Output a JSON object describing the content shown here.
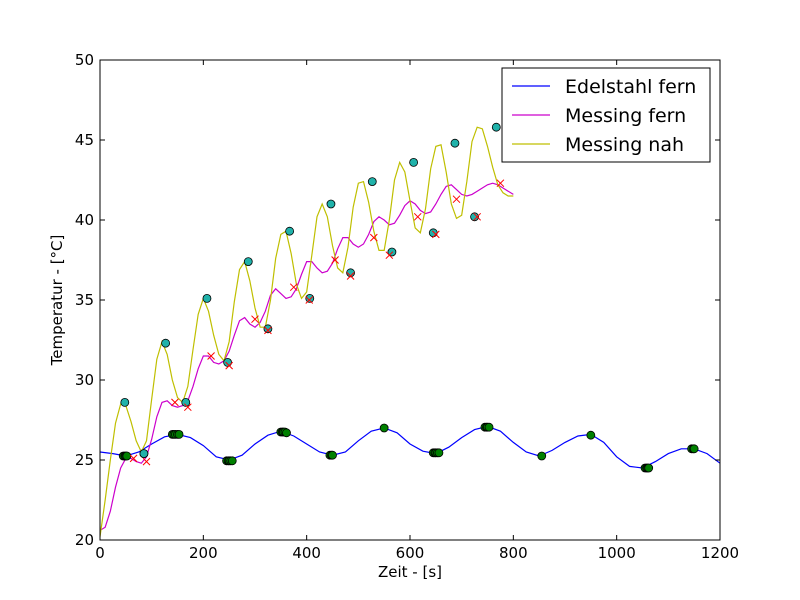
{
  "chart_data": {
    "type": "line",
    "xlabel": "Zeit - [s]",
    "ylabel": "Temperatur - [°C]",
    "xlim": [
      0,
      1200
    ],
    "ylim": [
      20,
      50
    ],
    "xticks": [
      "0",
      "200",
      "400",
      "600",
      "800",
      "1000",
      "1200"
    ],
    "yticks": [
      "20",
      "25",
      "30",
      "35",
      "40",
      "45",
      "50"
    ],
    "grid": false,
    "legend_position": "top-right",
    "colors": {
      "Edelstahl fern": "#0000ff",
      "Messing fern": "#cc00cc",
      "Messing nah": "#bfbf00",
      "markers_edelstahl": "#008000",
      "markers_messing_nah": "#20b2aa",
      "markers_messing_fern": "#ff0000"
    },
    "series": [
      {
        "name": "Edelstahl fern",
        "x": [
          0,
          25,
          50,
          75,
          100,
          125,
          150,
          175,
          200,
          225,
          250,
          275,
          300,
          325,
          350,
          375,
          400,
          425,
          450,
          475,
          500,
          525,
          550,
          575,
          600,
          625,
          650,
          675,
          700,
          725,
          750,
          775,
          800,
          825,
          850,
          875,
          900,
          925,
          950,
          975,
          1000,
          1025,
          1050,
          1075,
          1100,
          1125,
          1150,
          1175,
          1200
        ],
        "y": [
          25.5,
          25.4,
          25.25,
          25.5,
          26.0,
          26.45,
          26.6,
          26.4,
          25.9,
          25.2,
          25.0,
          25.3,
          26.0,
          26.55,
          26.8,
          26.5,
          26.0,
          25.5,
          25.3,
          25.5,
          26.2,
          26.8,
          27.0,
          26.7,
          26.0,
          25.55,
          25.4,
          25.8,
          26.4,
          26.9,
          27.1,
          26.8,
          26.1,
          25.5,
          25.25,
          25.6,
          26.1,
          26.5,
          26.6,
          26.1,
          25.2,
          24.6,
          24.5,
          24.9,
          25.4,
          25.7,
          25.7,
          25.4,
          24.8
        ]
      },
      {
        "name": "Messing fern",
        "x": [
          0,
          10,
          20,
          30,
          40,
          50,
          60,
          70,
          80,
          90,
          100,
          110,
          120,
          130,
          140,
          150,
          160,
          170,
          180,
          190,
          200,
          210,
          220,
          230,
          240,
          250,
          260,
          270,
          280,
          290,
          300,
          310,
          320,
          330,
          340,
          350,
          360,
          370,
          380,
          390,
          400,
          410,
          420,
          430,
          440,
          450,
          460,
          470,
          480,
          490,
          500,
          510,
          520,
          530,
          540,
          550,
          560,
          570,
          580,
          590,
          600,
          610,
          620,
          630,
          640,
          650,
          660,
          670,
          680,
          690,
          700,
          710,
          720,
          730,
          740,
          750,
          760,
          770,
          780,
          790,
          800
        ],
        "y": [
          20.6,
          20.8,
          21.8,
          23.3,
          24.5,
          25.1,
          25.1,
          24.9,
          24.8,
          25.2,
          26.3,
          27.7,
          28.6,
          28.7,
          28.4,
          28.3,
          28.4,
          28.7,
          29.6,
          30.7,
          31.5,
          31.5,
          31.1,
          31.0,
          31.2,
          31.8,
          32.8,
          33.7,
          33.9,
          33.5,
          33.3,
          33.6,
          34.3,
          35.3,
          35.7,
          35.4,
          35.1,
          35.2,
          35.7,
          36.6,
          37.4,
          37.4,
          37.0,
          36.7,
          36.8,
          37.3,
          38.2,
          38.9,
          38.9,
          38.5,
          38.3,
          38.5,
          39.1,
          39.9,
          40.2,
          40.0,
          39.7,
          39.8,
          40.3,
          40.9,
          41.2,
          41.0,
          40.6,
          40.4,
          40.5,
          41.0,
          41.6,
          42.1,
          42.2,
          41.9,
          41.6,
          41.5,
          41.6,
          41.8,
          42.0,
          42.2,
          42.3,
          42.2,
          42.0,
          41.8,
          41.6
        ]
      },
      {
        "name": "Messing nah",
        "x": [
          0,
          10,
          20,
          30,
          40,
          50,
          60,
          70,
          80,
          90,
          100,
          110,
          120,
          130,
          140,
          150,
          160,
          170,
          180,
          190,
          200,
          210,
          220,
          230,
          240,
          250,
          260,
          270,
          280,
          290,
          300,
          310,
          320,
          330,
          340,
          350,
          360,
          370,
          380,
          390,
          400,
          410,
          420,
          430,
          440,
          450,
          460,
          470,
          480,
          490,
          500,
          510,
          520,
          530,
          540,
          550,
          560,
          570,
          580,
          590,
          600,
          610,
          620,
          630,
          640,
          650,
          660,
          670,
          680,
          690,
          700,
          710,
          720,
          730,
          740,
          750,
          760,
          770,
          780,
          790,
          800
        ],
        "y": [
          20.2,
          22.5,
          25.0,
          27.3,
          28.5,
          28.4,
          27.4,
          26.2,
          25.5,
          26.2,
          28.8,
          31.3,
          32.4,
          31.6,
          30.0,
          28.9,
          28.6,
          29.6,
          31.9,
          34.1,
          35.1,
          34.3,
          32.8,
          31.6,
          31.2,
          32.4,
          34.9,
          36.9,
          37.4,
          36.2,
          34.5,
          33.3,
          33.3,
          35.0,
          37.6,
          39.1,
          39.3,
          37.9,
          36.0,
          35.1,
          35.5,
          37.8,
          40.2,
          41.0,
          40.2,
          38.4,
          37.0,
          36.7,
          38.3,
          40.8,
          42.3,
          42.4,
          41.1,
          39.3,
          38.1,
          38.1,
          40.0,
          42.5,
          43.6,
          43.0,
          41.2,
          39.5,
          39.2,
          40.7,
          43.2,
          44.6,
          44.7,
          43.0,
          41.0,
          40.1,
          40.3,
          42.4,
          44.9,
          45.8,
          45.7,
          44.6,
          43.3,
          42.2,
          41.7,
          41.5,
          41.5
        ]
      }
    ],
    "markers": [
      {
        "series": "Edelstahl fern",
        "shape": "circle",
        "x": [
          45,
          48,
          50,
          52,
          85,
          140,
          143,
          146,
          150,
          153,
          245,
          248,
          250,
          253,
          256,
          350,
          353,
          355,
          358,
          361,
          445,
          448,
          450,
          550,
          645,
          648,
          650,
          653,
          656,
          745,
          748,
          750,
          753,
          855,
          950,
          1055,
          1058,
          1060,
          1062,
          1145,
          1148,
          1150
        ],
        "y": [
          25.25,
          25.25,
          25.25,
          25.25,
          25.4,
          26.6,
          26.6,
          26.6,
          26.6,
          26.6,
          24.95,
          24.95,
          24.95,
          24.95,
          24.95,
          26.75,
          26.75,
          26.75,
          26.75,
          26.7,
          25.3,
          25.3,
          25.3,
          27.0,
          25.45,
          25.45,
          25.45,
          25.45,
          25.45,
          27.05,
          27.05,
          27.05,
          27.05,
          25.25,
          26.55,
          24.5,
          24.5,
          24.5,
          24.5,
          25.7,
          25.7,
          25.7
        ]
      },
      {
        "series": "Messing nah",
        "shape": "circle",
        "x": [
          48,
          85,
          127,
          166,
          207,
          247,
          287,
          325,
          367,
          406,
          447,
          485,
          527,
          565,
          607,
          645,
          687,
          725,
          767
        ],
        "y": [
          28.6,
          25.4,
          32.3,
          28.6,
          35.1,
          31.1,
          37.4,
          33.2,
          39.3,
          35.1,
          41.0,
          36.7,
          42.4,
          38.0,
          43.6,
          39.2,
          44.8,
          40.2,
          45.8
        ]
      },
      {
        "series": "Messing fern",
        "shape": "x",
        "x": [
          65,
          90,
          145,
          170,
          215,
          250,
          300,
          325,
          375,
          405,
          455,
          485,
          530,
          560,
          615,
          650,
          690,
          730,
          775
        ],
        "y": [
          25.1,
          24.9,
          28.6,
          28.3,
          31.5,
          30.9,
          33.8,
          33.1,
          35.8,
          35.0,
          37.5,
          36.5,
          38.9,
          37.8,
          40.2,
          39.1,
          41.3,
          40.2,
          42.3
        ]
      }
    ]
  }
}
